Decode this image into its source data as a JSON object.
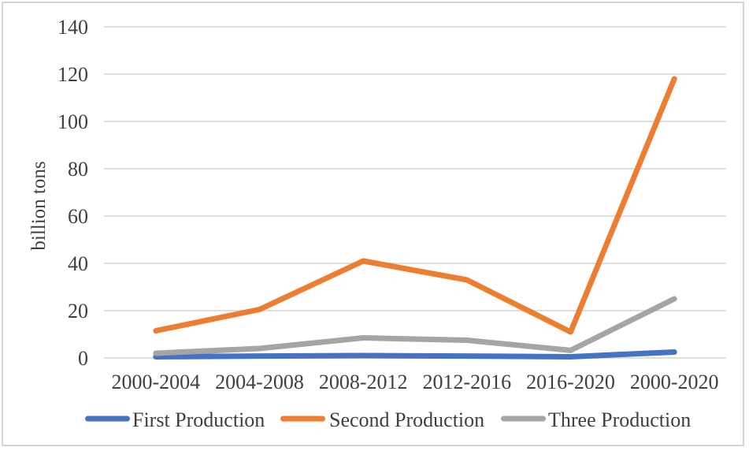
{
  "chart_data": {
    "type": "line",
    "title": "",
    "xlabel": "",
    "ylabel": "billion tons",
    "categories": [
      "2000-2004",
      "2004-2008",
      "2008-2012",
      "2012-2016",
      "2016-2020",
      "2000-2020"
    ],
    "series": [
      {
        "name": "First Production",
        "color": "#4472C4",
        "values": [
          0.5,
          0.8,
          1.0,
          0.8,
          0.5,
          2.5
        ]
      },
      {
        "name": "Second Production",
        "color": "#ED7D31",
        "values": [
          11.5,
          20.5,
          41,
          33,
          11,
          118
        ]
      },
      {
        "name": "Three Production",
        "color": "#A5A5A5",
        "values": [
          2,
          4,
          8.5,
          7.5,
          3.2,
          25
        ]
      }
    ],
    "yticks": [
      0,
      20,
      40,
      60,
      80,
      100,
      120,
      140
    ],
    "ylim": [
      0,
      140
    ],
    "grid": true,
    "legend_position": "bottom"
  },
  "colors": {
    "gridline": "#D9D9D9",
    "text": "#3F3F3F",
    "frame_border": "#D4D4D4",
    "background": "#FFFFFF"
  }
}
